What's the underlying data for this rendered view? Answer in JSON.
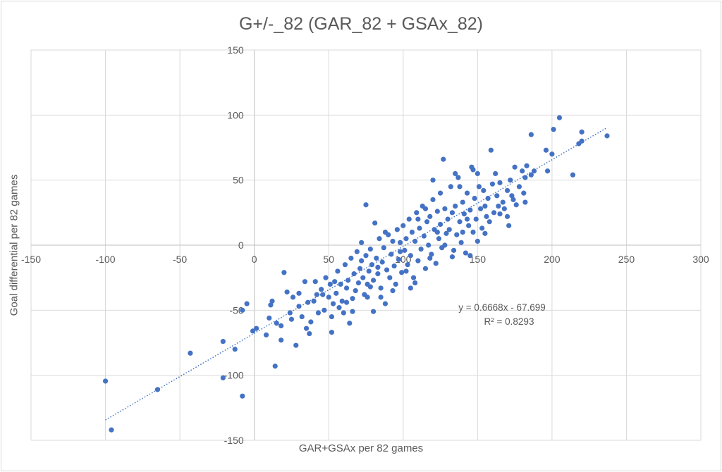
{
  "chart_data": {
    "type": "scatter",
    "title": "G+/-_82 (GAR_82 + GSAx_82)",
    "xlabel": "GAR+GSAx per 82 games",
    "ylabel": "Goal differential per 82 games",
    "xlim": [
      -150,
      300
    ],
    "ylim": [
      -150,
      150
    ],
    "xticks": [
      -150,
      -100,
      -50,
      0,
      50,
      100,
      150,
      200,
      250,
      300
    ],
    "yticks": [
      -150,
      -100,
      -50,
      0,
      50,
      100,
      150
    ],
    "grid": true,
    "legend": "none",
    "color": "#4472c4",
    "trendline": {
      "type": "linear",
      "slope": 0.6668,
      "intercept": -67.699,
      "x_range": [
        -100,
        237
      ],
      "equation": "y = 0.6668x - 67.699",
      "r2_label": "R² = 0.8293"
    },
    "points": [
      [
        -100,
        -104.5
      ],
      [
        -96,
        -142
      ],
      [
        -65,
        -111
      ],
      [
        -43,
        -83
      ],
      [
        -21,
        -74
      ],
      [
        -21,
        -102
      ],
      [
        -13,
        -80
      ],
      [
        -8,
        -116
      ],
      [
        -8,
        -50
      ],
      [
        -5,
        -45
      ],
      [
        -1,
        -66
      ],
      [
        1.4,
        -64
      ],
      [
        14,
        -93
      ],
      [
        237,
        84
      ],
      [
        205,
        98
      ],
      [
        201,
        89
      ],
      [
        220,
        87
      ],
      [
        220,
        80
      ],
      [
        218,
        78
      ],
      [
        214,
        54
      ],
      [
        186,
        85
      ],
      [
        196,
        73
      ],
      [
        200,
        70
      ],
      [
        197,
        57
      ],
      [
        10,
        -56
      ],
      [
        12,
        -43
      ],
      [
        15,
        -60
      ],
      [
        18,
        -62
      ],
      [
        20,
        -21
      ],
      [
        22,
        -36
      ],
      [
        24,
        -52
      ],
      [
        26,
        -40
      ],
      [
        28,
        -77
      ],
      [
        30,
        -47
      ],
      [
        32,
        -55
      ],
      [
        34,
        -28
      ],
      [
        35,
        -64
      ],
      [
        36,
        -44
      ],
      [
        38,
        -59
      ],
      [
        40,
        -43
      ],
      [
        41,
        -28
      ],
      [
        43,
        -52
      ],
      [
        8,
        -69
      ],
      [
        11,
        -46
      ],
      [
        18,
        -73
      ],
      [
        25,
        -57
      ],
      [
        30,
        -37
      ],
      [
        37,
        -68
      ],
      [
        42,
        -38
      ],
      [
        45,
        -34
      ],
      [
        47,
        -50
      ],
      [
        48,
        -25
      ],
      [
        50,
        -40
      ],
      [
        51,
        -30
      ],
      [
        52,
        -55
      ],
      [
        53,
        -45
      ],
      [
        55,
        -37
      ],
      [
        56,
        -20
      ],
      [
        57,
        -48
      ],
      [
        58,
        -30
      ],
      [
        59,
        -43
      ],
      [
        60,
        -52
      ],
      [
        61,
        -15
      ],
      [
        62,
        -33
      ],
      [
        63,
        -27
      ],
      [
        64,
        -60
      ],
      [
        65,
        -10
      ],
      [
        66,
        -41
      ],
      [
        67,
        -22
      ],
      [
        68,
        -35
      ],
      [
        69,
        -5
      ],
      [
        70,
        -29
      ],
      [
        52,
        -67
      ],
      [
        46,
        -38
      ],
      [
        54,
        -28
      ],
      [
        62,
        -44
      ],
      [
        66,
        -51
      ],
      [
        71,
        -18
      ],
      [
        72,
        -12
      ],
      [
        73,
        -25
      ],
      [
        74,
        -38
      ],
      [
        75,
        31
      ],
      [
        75,
        -8
      ],
      [
        76,
        -30
      ],
      [
        77,
        -20
      ],
      [
        78,
        -3
      ],
      [
        79,
        -15
      ],
      [
        80,
        -27
      ],
      [
        81,
        17
      ],
      [
        82,
        -10
      ],
      [
        83,
        -22
      ],
      [
        84,
        5
      ],
      [
        85,
        -33
      ],
      [
        86,
        -13
      ],
      [
        87,
        -2
      ],
      [
        88,
        -45
      ],
      [
        89,
        -19
      ],
      [
        90,
        8
      ],
      [
        91,
        -25
      ],
      [
        92,
        -7
      ],
      [
        93,
        3
      ],
      [
        94,
        -16
      ],
      [
        95,
        -30
      ],
      [
        96,
        12
      ],
      [
        97,
        -11
      ],
      [
        98,
        2
      ],
      [
        99,
        -21
      ],
      [
        100,
        15
      ],
      [
        80,
        -51
      ],
      [
        85,
        -40
      ],
      [
        72,
        2
      ],
      [
        78,
        -32
      ],
      [
        88,
        10
      ],
      [
        93,
        -35
      ],
      [
        98,
        -5
      ],
      [
        76,
        -40
      ],
      [
        83,
        -17
      ],
      [
        101,
        -4
      ],
      [
        102,
        5
      ],
      [
        103,
        -15
      ],
      [
        104,
        20
      ],
      [
        105,
        -8
      ],
      [
        106,
        10
      ],
      [
        107,
        -25
      ],
      [
        108,
        3
      ],
      [
        109,
        25
      ],
      [
        110,
        -12
      ],
      [
        111,
        13
      ],
      [
        112,
        -3
      ],
      [
        113,
        30
      ],
      [
        114,
        7
      ],
      [
        115,
        -18
      ],
      [
        116,
        18
      ],
      [
        117,
        0
      ],
      [
        118,
        22
      ],
      [
        119,
        -7
      ],
      [
        120,
        35
      ],
      [
        121,
        12
      ],
      [
        122,
        -14
      ],
      [
        123,
        26
      ],
      [
        124,
        5
      ],
      [
        125,
        16
      ],
      [
        126,
        -2
      ],
      [
        127,
        66
      ],
      [
        128,
        28
      ],
      [
        129,
        9
      ],
      [
        130,
        20
      ],
      [
        105,
        -33
      ],
      [
        108,
        -29
      ],
      [
        115,
        28
      ],
      [
        120,
        50
      ],
      [
        125,
        40
      ],
      [
        110,
        20
      ],
      [
        102,
        -20
      ],
      [
        118,
        -10
      ],
      [
        123,
        10
      ],
      [
        128,
        0
      ],
      [
        131,
        12
      ],
      [
        132,
        45
      ],
      [
        133,
        25
      ],
      [
        134,
        -4
      ],
      [
        135,
        30
      ],
      [
        136,
        8
      ],
      [
        137,
        52
      ],
      [
        138,
        18
      ],
      [
        139,
        2
      ],
      [
        140,
        33
      ],
      [
        141,
        24
      ],
      [
        142,
        -6
      ],
      [
        143,
        40
      ],
      [
        144,
        15
      ],
      [
        145,
        27
      ],
      [
        146,
        60
      ],
      [
        147,
        10
      ],
      [
        148,
        36
      ],
      [
        149,
        20
      ],
      [
        150,
        3
      ],
      [
        151,
        45
      ],
      [
        152,
        28
      ],
      [
        153,
        13
      ],
      [
        154,
        42
      ],
      [
        155,
        30
      ],
      [
        156,
        22
      ],
      [
        157,
        36
      ],
      [
        158,
        18
      ],
      [
        159,
        73
      ],
      [
        160,
        47
      ],
      [
        135,
        55
      ],
      [
        140,
        10
      ],
      [
        145,
        -8
      ],
      [
        150,
        55
      ],
      [
        138,
        45
      ],
      [
        133,
        -9
      ],
      [
        147,
        58
      ],
      [
        155,
        9
      ],
      [
        143,
        20
      ],
      [
        161,
        25
      ],
      [
        162,
        55
      ],
      [
        163,
        38
      ],
      [
        164,
        30
      ],
      [
        165,
        48
      ],
      [
        167,
        33
      ],
      [
        168,
        28
      ],
      [
        170,
        42
      ],
      [
        171,
        15
      ],
      [
        172,
        50
      ],
      [
        173,
        38
      ],
      [
        174,
        35
      ],
      [
        175,
        60
      ],
      [
        176,
        31
      ],
      [
        180,
        57
      ],
      [
        181,
        40
      ],
      [
        182,
        52
      ],
      [
        182,
        33
      ],
      [
        183,
        61
      ],
      [
        186,
        54
      ],
      [
        188,
        57
      ],
      [
        170,
        22
      ],
      [
        165,
        24
      ],
      [
        178,
        45
      ]
    ]
  }
}
